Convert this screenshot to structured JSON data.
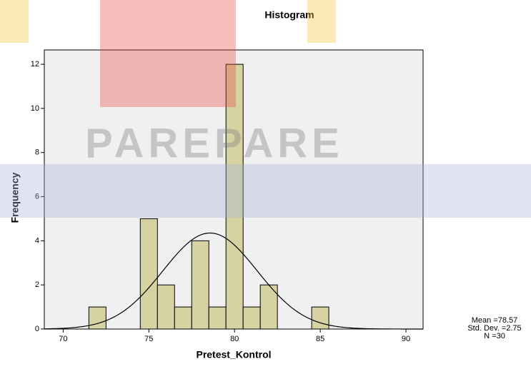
{
  "chart_data": {
    "type": "histogram",
    "title": "Histogram",
    "x_label": "Pretest_Kontrol",
    "y_label": "Frequency",
    "bins": [
      71.5,
      72.5,
      73.5,
      74.5,
      75.5,
      76.5,
      77.5,
      78.5,
      79.5,
      80.5,
      81.5,
      82.5,
      83.5,
      84.5,
      85.5
    ],
    "values": [
      1,
      0,
      0,
      5,
      2,
      1,
      4,
      1,
      12,
      1,
      2,
      0,
      0,
      1
    ],
    "color": "#d6d2a2",
    "xlim": [
      68.9,
      91
    ],
    "xticks": [
      70,
      75,
      80,
      85,
      90
    ],
    "ylim": [
      0,
      12.65
    ],
    "yticks": [
      0,
      2,
      4,
      6,
      8,
      10,
      12
    ],
    "normal_curve": true,
    "stats": {
      "mean": {
        "value": 78.57,
        "label": "Mean =78.57"
      },
      "sd": {
        "value": 2.75,
        "label": "Std. Dev. =2.75"
      },
      "n": {
        "value": 30,
        "label": "N =30"
      }
    },
    "watermark": "PAREPARE"
  }
}
